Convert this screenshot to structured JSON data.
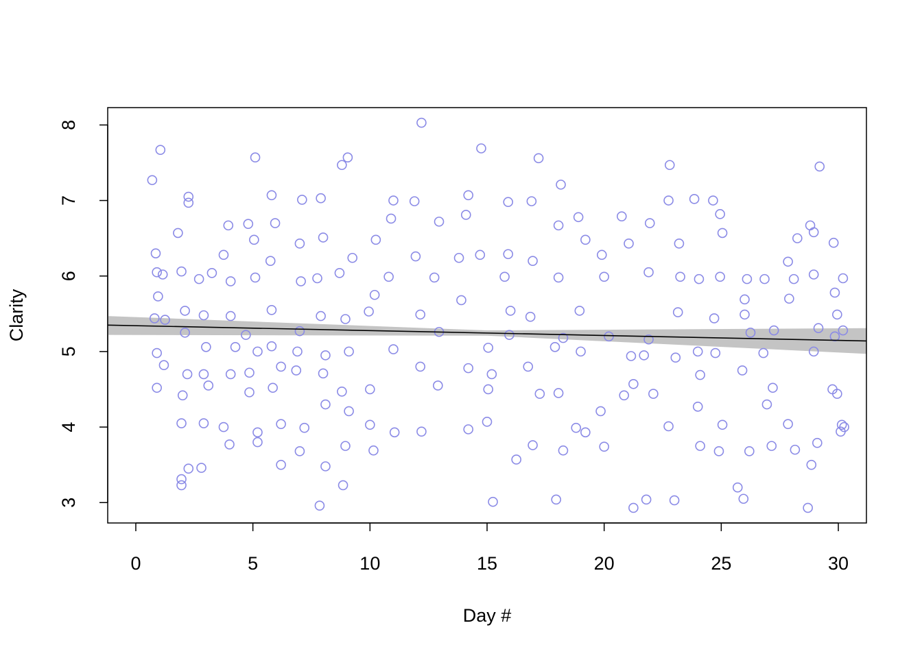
{
  "chart_data": {
    "type": "scatter",
    "x_label": "Day #",
    "y_label": "Clarity",
    "xlim": [
      -1.2,
      31.2
    ],
    "ylim": [
      2.73,
      8.23
    ],
    "xticks": [
      0,
      5,
      10,
      15,
      20,
      25,
      30
    ],
    "yticks": [
      3,
      4,
      5,
      6,
      7,
      8
    ],
    "color": "#8a8ae6",
    "x": [
      0.7,
      1.05,
      0.8,
      0.85,
      0.9,
      0.95,
      1.15,
      0.9,
      0.9,
      1.25,
      1.2,
      1.8,
      1.95,
      2.25,
      2.25,
      2.1,
      2.1,
      2.0,
      2.2,
      1.95,
      1.95,
      1.95,
      2.25,
      2.8,
      2.7,
      2.9,
      2.9,
      3.0,
      3.1,
      2.9,
      3.25,
      3.75,
      3.95,
      4.05,
      4.05,
      4.05,
      3.75,
      4.0,
      4.25,
      4.8,
      4.7,
      4.85,
      5.1,
      5.05,
      5.1,
      5.2,
      5.2,
      5.2,
      4.85,
      5.8,
      5.95,
      5.75,
      5.8,
      5.8,
      5.85,
      6.2,
      6.2,
      6.2,
      6.85,
      7.1,
      7.0,
      7.05,
      7.0,
      6.9,
      7.0,
      7.2,
      7.9,
      8.0,
      7.75,
      7.9,
      8.1,
      8.0,
      8.1,
      8.1,
      7.85,
      8.8,
      9.05,
      8.7,
      8.95,
      9.1,
      8.8,
      9.1,
      8.85,
      8.95,
      9.25,
      9.95,
      10.25,
      10.2,
      10.0,
      10.15,
      10.0,
      10.9,
      11.0,
      10.8,
      11.0,
      11.05,
      11.9,
      12.2,
      12.15,
      12.15,
      12.2,
      11.95,
      12.9,
      12.95,
      12.75,
      12.95,
      13.8,
      13.9,
      14.1,
      14.2,
      14.2,
      14.2,
      14.75,
      14.7,
      15.05,
      15.05,
      15.0,
      15.25,
      15.2,
      15.9,
      15.9,
      16.0,
      15.95,
      15.75,
      16.25,
      16.9,
      17.2,
      16.95,
      16.85,
      16.75,
      16.95,
      17.25,
      17.95,
      18.15,
      18.05,
      18.05,
      17.9,
      18.05,
      18.25,
      18.25,
      18.9,
      19.2,
      18.95,
      19.0,
      18.8,
      19.2,
      19.9,
      19.85,
      20.0,
      20.2,
      20.0,
      20.75,
      21.05,
      21.15,
      20.85,
      21.25,
      21.25,
      21.8,
      21.95,
      21.9,
      21.9,
      22.1,
      21.7,
      22.75,
      22.8,
      23.2,
      23.25,
      23.15,
      23.05,
      23.0,
      22.75,
      23.85,
      24.05,
      24.0,
      24.1,
      24.0,
      24.1,
      24.65,
      24.95,
      25.05,
      24.95,
      24.7,
      24.75,
      24.9,
      25.05,
      25.7,
      25.95,
      25.9,
      26.0,
      26.0,
      26.1,
      26.25,
      26.2,
      26.85,
      26.8,
      26.95,
      27.15,
      27.25,
      27.2,
      27.85,
      27.9,
      28.1,
      28.25,
      28.15,
      27.85,
      28.8,
      28.95,
      28.95,
      29.15,
      28.95,
      29.1,
      28.85,
      28.7,
      29.2,
      29.8,
      29.85,
      29.95,
      29.85,
      29.75,
      29.95,
      30.2,
      30.2,
      30.15,
      30.25,
      30.1
    ],
    "values": [
      7.27,
      7.67,
      5.44,
      6.3,
      6.05,
      5.73,
      6.02,
      4.98,
      4.52,
      5.42,
      4.82,
      6.57,
      6.06,
      7.05,
      6.97,
      5.54,
      5.25,
      4.42,
      4.7,
      4.05,
      3.31,
      3.23,
      3.45,
      3.46,
      5.96,
      5.48,
      4.7,
      5.06,
      4.55,
      4.05,
      6.04,
      6.28,
      6.67,
      5.93,
      5.47,
      4.7,
      4.0,
      3.77,
      5.06,
      6.69,
      5.22,
      4.72,
      7.57,
      6.48,
      5.98,
      5.0,
      3.8,
      3.93,
      4.46,
      7.07,
      6.7,
      6.2,
      5.55,
      5.07,
      4.52,
      3.5,
      4.04,
      4.8,
      4.75,
      7.01,
      6.43,
      5.93,
      5.27,
      5.0,
      3.68,
      3.99,
      7.03,
      6.51,
      5.97,
      5.47,
      4.95,
      4.71,
      4.3,
      3.48,
      2.96,
      7.47,
      7.57,
      6.04,
      5.43,
      5.0,
      4.47,
      4.21,
      3.23,
      3.75,
      6.24,
      5.53,
      6.48,
      5.75,
      4.5,
      3.69,
      4.03,
      6.76,
      7.0,
      5.99,
      5.03,
      3.93,
      6.99,
      8.03,
      5.49,
      4.8,
      3.94,
      6.26,
      4.55,
      6.72,
      5.98,
      5.26,
      6.24,
      5.68,
      6.81,
      7.07,
      4.78,
      3.97,
      7.69,
      6.28,
      5.05,
      4.5,
      4.07,
      3.01,
      4.7,
      6.98,
      6.29,
      5.54,
      5.22,
      5.99,
      3.57,
      6.99,
      7.56,
      6.2,
      5.46,
      4.8,
      3.76,
      4.44,
      3.04,
      7.21,
      6.67,
      5.98,
      5.06,
      4.45,
      5.18,
      3.69,
      6.78,
      6.48,
      5.54,
      5.0,
      3.99,
      3.93,
      6.28,
      4.21,
      5.99,
      5.2,
      3.74,
      6.79,
      6.43,
      4.94,
      4.42,
      2.93,
      4.57,
      3.04,
      6.7,
      6.05,
      5.16,
      4.44,
      4.95,
      7.0,
      7.47,
      6.43,
      5.99,
      5.52,
      4.92,
      3.03,
      4.01,
      7.02,
      5.96,
      5.0,
      4.69,
      4.27,
      3.75,
      7.0,
      6.82,
      6.57,
      5.99,
      5.44,
      4.98,
      3.68,
      4.03,
      3.2,
      3.05,
      4.75,
      5.69,
      5.49,
      5.96,
      5.25,
      3.68,
      5.96,
      4.98,
      4.3,
      3.75,
      5.28,
      4.52,
      6.19,
      5.7,
      5.96,
      6.5,
      3.7,
      4.04,
      6.67,
      6.58,
      6.02,
      5.31,
      5.0,
      3.79,
      3.5,
      2.93,
      7.45,
      6.44,
      5.78,
      5.49,
      5.2,
      4.5,
      4.44,
      5.97,
      5.28,
      4.03,
      4.0,
      3.94
    ],
    "trend": {
      "x": [
        -1.2,
        31.2
      ],
      "y": [
        5.35,
        5.14
      ],
      "color": "#000000"
    },
    "band": {
      "x": [
        -1.2,
        15,
        31.2
      ],
      "lower": [
        5.22,
        5.21,
        4.97
      ],
      "upper": [
        5.47,
        5.28,
        5.31
      ],
      "color": "#c4c4c4"
    }
  }
}
